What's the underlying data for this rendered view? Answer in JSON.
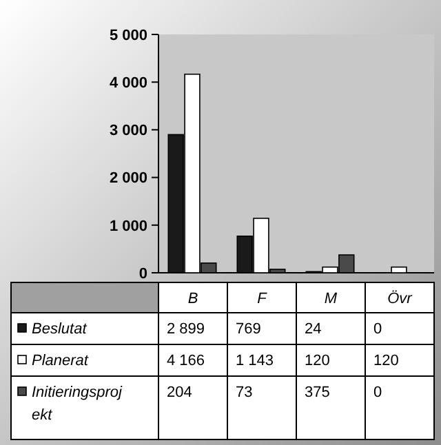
{
  "chart_data": {
    "type": "bar",
    "categories": [
      "B",
      "F",
      "M",
      "Övr"
    ],
    "series": [
      {
        "name": "Beslutat",
        "color": "#1a1a1a",
        "values": [
          2899,
          769,
          24,
          0
        ],
        "value_labels": [
          "2 899",
          "769",
          "24",
          "0"
        ]
      },
      {
        "name": "Planerat",
        "color": "#ffffff",
        "values": [
          4166,
          1143,
          120,
          120
        ],
        "value_labels": [
          "4 166",
          "1 143",
          "120",
          "120"
        ]
      },
      {
        "name": "Initieringsprojekt",
        "color": "#4a4a4a",
        "values": [
          204,
          73,
          375,
          0
        ],
        "value_labels": [
          "204",
          "73",
          "375",
          "0"
        ]
      }
    ],
    "ylim": [
      0,
      5000
    ],
    "yticks": [
      {
        "value": 0,
        "label": "0"
      },
      {
        "value": 1000,
        "label": "1 000"
      },
      {
        "value": 2000,
        "label": "2 000"
      },
      {
        "value": 3000,
        "label": "3 000"
      },
      {
        "value": 4000,
        "label": "4 000"
      },
      {
        "value": 5000,
        "label": "5 000"
      }
    ],
    "legend": "bottom"
  }
}
